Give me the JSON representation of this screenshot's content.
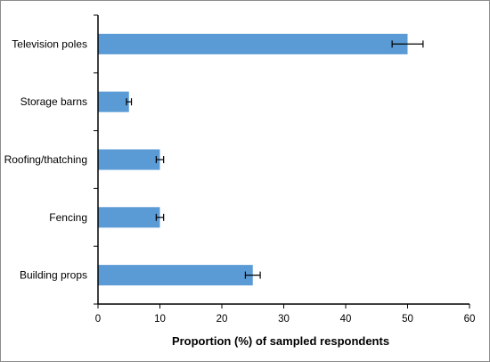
{
  "chart_data": {
    "type": "bar",
    "orientation": "horizontal",
    "categories": [
      "Television poles",
      "Storage barns",
      "Roofing/thatching",
      "Fencing",
      "Building props"
    ],
    "values": [
      50,
      5,
      10,
      10,
      25
    ],
    "errors": [
      2.5,
      0.4,
      0.6,
      0.6,
      1.2
    ],
    "xlabel": "Proportion (%) of sampled respondents",
    "xlim": [
      0,
      60
    ],
    "xticks": [
      "0",
      "10",
      "20",
      "30",
      "40",
      "50",
      "60"
    ],
    "grid": false,
    "legend": "none",
    "bar_color": "#5b9bd5",
    "error_bar_color": "#000000"
  }
}
